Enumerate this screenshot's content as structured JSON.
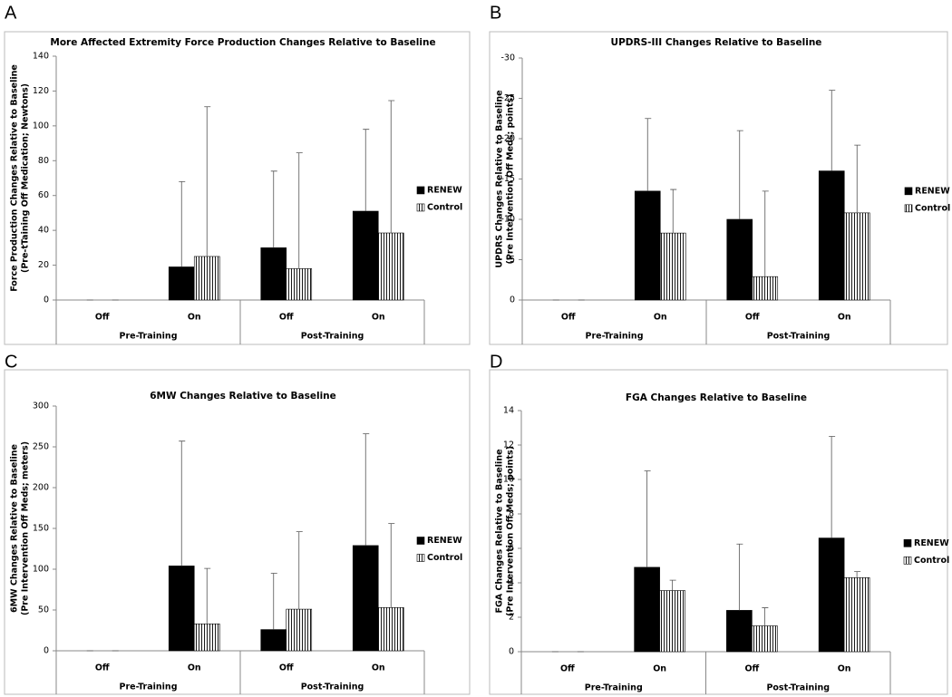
{
  "chart_data": [
    {
      "panel": "A",
      "type": "bar",
      "title": "More Affected Extremity Force Production Changes Relative to Baseline",
      "ylabel": [
        "Force Production Changes Relative to Baseline",
        "(Pre-tTaining Off Medication; Newtons)"
      ],
      "categories": [
        "Off",
        "On",
        "Off",
        "On"
      ],
      "groups": [
        "Pre-Training",
        "Post-Training"
      ],
      "series": [
        {
          "name": "RENEW",
          "color": "#000000",
          "values": [
            0,
            19,
            30,
            51
          ],
          "errors": [
            0,
            49,
            44,
            47
          ]
        },
        {
          "name": "Control",
          "color": "#ffffff",
          "hatch": "vertical",
          "values": [
            0,
            25,
            18,
            38.5
          ],
          "errors": [
            0,
            86,
            66.5,
            76
          ]
        }
      ],
      "ylim": [
        0,
        140
      ],
      "yticks": [
        0,
        20,
        40,
        60,
        80,
        100,
        120,
        140
      ]
    },
    {
      "panel": "B",
      "type": "bar",
      "title": "UPDRS-III Changes Relative to Baseline",
      "ylabel": [
        "UPDRS Changes Relative to Baseline",
        "(Pre Intervention Off Meds; points)"
      ],
      "categories": [
        "Off",
        "On",
        "Off",
        "On"
      ],
      "groups": [
        "Pre-Training",
        "Post-Training"
      ],
      "series": [
        {
          "name": "RENEW",
          "color": "#000000",
          "values": [
            0,
            -13.5,
            -10,
            -16
          ],
          "errors": [
            0,
            9,
            11,
            10
          ]
        },
        {
          "name": "Control",
          "color": "#ffffff",
          "hatch": "vertical",
          "values": [
            0,
            -8.3,
            -2.9,
            -10.8
          ],
          "errors": [
            0,
            5.4,
            10.6,
            8.4
          ]
        }
      ],
      "ylim": [
        0,
        -30
      ],
      "yticks": [
        0,
        -5,
        -10,
        -15,
        -20,
        -25,
        -30
      ]
    },
    {
      "panel": "C",
      "type": "bar",
      "title": "6MW Changes Relative to Baseline",
      "ylabel": [
        "6MW Changes Relative to Baseline",
        "(Pre Intervention Off Meds; meters)"
      ],
      "categories": [
        "Off",
        "On",
        "Off",
        "On"
      ],
      "groups": [
        "Pre-Training",
        "Post-Training"
      ],
      "series": [
        {
          "name": "RENEW",
          "color": "#000000",
          "values": [
            0,
            104,
            26,
            129
          ],
          "errors": [
            0,
            153,
            69,
            137
          ]
        },
        {
          "name": "Control",
          "color": "#ffffff",
          "hatch": "vertical",
          "values": [
            0,
            33,
            51,
            53
          ],
          "errors": [
            0,
            68,
            95,
            103
          ]
        }
      ],
      "ylim": [
        0,
        300
      ],
      "yticks": [
        0,
        50,
        100,
        150,
        200,
        250,
        300
      ]
    },
    {
      "panel": "D",
      "type": "bar",
      "title": "FGA Changes Relative to Baseline",
      "ylabel": [
        "FGA Changes Relative to Baseline",
        "(Pre Intervention Off Meds; points)"
      ],
      "categories": [
        "Off",
        "On",
        "Off",
        "On"
      ],
      "groups": [
        "Pre-Training",
        "Post-Training"
      ],
      "series": [
        {
          "name": "RENEW",
          "color": "#000000",
          "values": [
            0,
            4.9,
            2.4,
            6.6
          ],
          "errors": [
            0,
            5.6,
            3.85,
            5.9
          ]
        },
        {
          "name": "Control",
          "color": "#ffffff",
          "hatch": "vertical",
          "values": [
            0,
            3.55,
            1.5,
            4.3
          ],
          "errors": [
            0,
            0.6,
            1.05,
            0.35
          ]
        }
      ],
      "ylim": [
        0,
        14
      ],
      "yticks": [
        0,
        2,
        4,
        6,
        8,
        10,
        12,
        14
      ]
    }
  ]
}
